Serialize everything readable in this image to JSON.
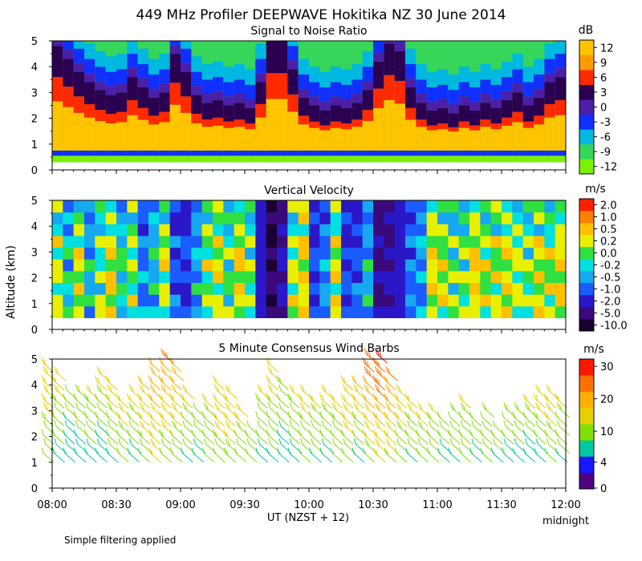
{
  "title": "449 MHz Profiler DEEPWAVE Hokitika NZ 30 June 2014",
  "ylabel": "Altitude (km)",
  "xlabel": "UT  (NZST + 12)",
  "x_end_note": "midnight",
  "footnote": "Simple filtering applied",
  "colors": {
    "axis": "#000000",
    "background": "#ffffff"
  },
  "chart_data": [
    {
      "type": "heatmap",
      "title": "Signal to Noise Ratio",
      "unit": "dB",
      "xlim": [
        0,
        240
      ],
      "ylim": [
        0,
        5
      ],
      "x_tick_labels": [
        "08:00",
        "08:30",
        "09:00",
        "09:30",
        "10:00",
        "10:30",
        "11:00",
        "11:30",
        "12:00"
      ],
      "y_tick_labels": [
        "0",
        "1",
        "2",
        "3",
        "4",
        "5"
      ],
      "colorbar": {
        "labels": [
          "-12",
          "-9",
          "-6",
          "-3",
          "0",
          "3",
          "6",
          "9",
          "12"
        ],
        "colors": [
          "#7cf000",
          "#36d65a",
          "#00b8e0",
          "#1030ff",
          "#4b1fa8",
          "#2b0050",
          "#ff2a00",
          "#ff9a00",
          "#ffc400"
        ]
      },
      "time_min": [
        0,
        5,
        10,
        15,
        20,
        25,
        30,
        35,
        40,
        45,
        50,
        55,
        60,
        65,
        70,
        75,
        80,
        85,
        90,
        95,
        100,
        105,
        110,
        115,
        120,
        125,
        130,
        135,
        140,
        145,
        150,
        155,
        160,
        165,
        170,
        175,
        180,
        185,
        190,
        195,
        200,
        205,
        210,
        215,
        220,
        225,
        230,
        235,
        240
      ],
      "column_top_km": [
        4.8,
        4.3,
        3.8,
        3.4,
        3.1,
        2.9,
        3.0,
        3.6,
        3.2,
        2.8,
        3.0,
        4.5,
        3.8,
        2.9,
        2.6,
        2.7,
        2.5,
        2.6,
        2.4,
        3.4,
        5.0,
        5.0,
        3.9,
        2.8,
        2.5,
        2.3,
        2.5,
        2.4,
        2.6,
        3.1,
        4.2,
        4.9,
        4.6,
        3.2,
        2.6,
        2.3,
        2.4,
        2.2,
        2.5,
        2.3,
        2.6,
        2.4,
        2.7,
        3.0,
        2.5,
        2.8,
        3.4,
        3.6,
        2.6
      ]
    },
    {
      "type": "heatmap",
      "title": "Vertical Velocity",
      "unit": "m/s",
      "xlim": [
        0,
        240
      ],
      "ylim": [
        0,
        5
      ],
      "x_tick_labels": [
        "08:00",
        "08:30",
        "09:00",
        "09:30",
        "10:00",
        "10:30",
        "11:00",
        "11:30",
        "12:00"
      ],
      "y_tick_labels": [
        "0",
        "1",
        "2",
        "3",
        "4",
        "5"
      ],
      "colorbar": {
        "labels": [
          "-10.0",
          "-5.0",
          "-2.0",
          "-1.0",
          "-0.5",
          "-0.2",
          "0.0",
          "0.2",
          "0.5",
          "1.0",
          "2.0"
        ],
        "colors": [
          "#1a0030",
          "#3a0a7a",
          "#2a18c8",
          "#1a5cff",
          "#16a8f0",
          "#00e0e0",
          "#30e040",
          "#e8f000",
          "#ffc000",
          "#ff8000",
          "#ff2000"
        ]
      },
      "time_min": [
        0,
        5,
        10,
        15,
        20,
        25,
        30,
        35,
        40,
        45,
        50,
        55,
        60,
        65,
        70,
        75,
        80,
        85,
        90,
        95,
        100,
        105,
        110,
        115,
        120,
        125,
        130,
        135,
        140,
        145,
        150,
        155,
        160,
        165,
        170,
        175,
        180,
        185,
        190,
        195,
        200,
        205,
        210,
        215,
        220,
        225,
        230,
        235,
        240
      ],
      "mean_velocity_ms": [
        0.1,
        -0.3,
        0.2,
        -0.4,
        0.0,
        0.3,
        -0.2,
        0.1,
        -0.6,
        -0.3,
        0.2,
        -0.8,
        -1.2,
        -0.4,
        0.1,
        0.2,
        -0.1,
        0.3,
        0.0,
        -1.5,
        -5.0,
        -2.0,
        0.1,
        0.4,
        -1.0,
        -0.6,
        0.2,
        -1.1,
        -0.9,
        -0.4,
        -2.2,
        -2.0,
        -1.6,
        -0.8,
        -0.5,
        0.3,
        0.2,
        -0.1,
        0.0,
        0.4,
        0.1,
        0.2,
        0.3,
        0.1,
        0.0,
        0.2,
        0.1,
        0.3,
        0.2
      ]
    },
    {
      "type": "wind_barbs",
      "title": "5 Minute Consensus Wind Barbs",
      "unit": "m/s",
      "xlim": [
        0,
        240
      ],
      "ylim": [
        0,
        5
      ],
      "x_tick_labels": [
        "08:00",
        "08:30",
        "09:00",
        "09:30",
        "10:00",
        "10:30",
        "11:00",
        "11:30",
        "12:00"
      ],
      "y_tick_labels": [
        "0",
        "1",
        "2",
        "3",
        "4",
        "5"
      ],
      "colorbar": {
        "labels": [
          "0",
          "4",
          "10",
          "20",
          "30"
        ],
        "colors": [
          "#500080",
          "#1818ff",
          "#00c8a0",
          "#80e000",
          "#e8d000",
          "#ffb000",
          "#ff7000",
          "#ff1800"
        ]
      },
      "time_min": [
        0,
        5,
        10,
        15,
        20,
        25,
        30,
        35,
        40,
        45,
        50,
        55,
        60,
        65,
        70,
        75,
        80,
        85,
        90,
        95,
        100,
        105,
        110,
        115,
        120,
        125,
        130,
        135,
        140,
        145,
        150,
        155,
        160,
        165,
        170,
        175,
        180,
        185,
        190,
        195,
        200,
        205,
        210,
        215,
        220,
        225,
        230,
        235,
        240
      ],
      "speed_low_ms": [
        12,
        10,
        8,
        9,
        10,
        8,
        11,
        12,
        10,
        14,
        16,
        13,
        12,
        11,
        10,
        12,
        14,
        15,
        13,
        12,
        10,
        11,
        9,
        10,
        12,
        11,
        10,
        12,
        13,
        10,
        14,
        16,
        15,
        12,
        11,
        13,
        12,
        10,
        11,
        12,
        10,
        12,
        11,
        10,
        9,
        8,
        10,
        12,
        11
      ],
      "speed_high_ms": [
        22,
        20,
        18,
        19,
        21,
        20,
        22,
        24,
        22,
        23,
        25,
        26,
        24,
        22,
        21,
        20,
        22,
        23,
        22,
        21,
        20,
        19,
        18,
        20,
        21,
        22,
        23,
        22,
        24,
        25,
        28,
        30,
        27,
        25,
        24,
        23,
        22,
        21,
        22,
        20,
        19,
        20,
        21,
        23,
        24,
        25,
        26,
        24,
        22
      ],
      "top_km": [
        4.8,
        4.2,
        3.5,
        3.6,
        3.8,
        4.4,
        3.9,
        3.4,
        3.6,
        4.0,
        4.5,
        5.0,
        4.6,
        3.8,
        3.0,
        3.4,
        3.9,
        3.6,
        3.1,
        2.2,
        3.6,
        4.8,
        4.0,
        3.5,
        3.7,
        3.2,
        3.8,
        3.4,
        3.9,
        4.1,
        5.0,
        4.9,
        4.2,
        3.6,
        3.2,
        2.9,
        3.0,
        2.6,
        2.8,
        3.2,
        2.7,
        3.0,
        2.4,
        2.8,
        3.1,
        3.4,
        3.5,
        3.6,
        3.3
      ]
    }
  ]
}
